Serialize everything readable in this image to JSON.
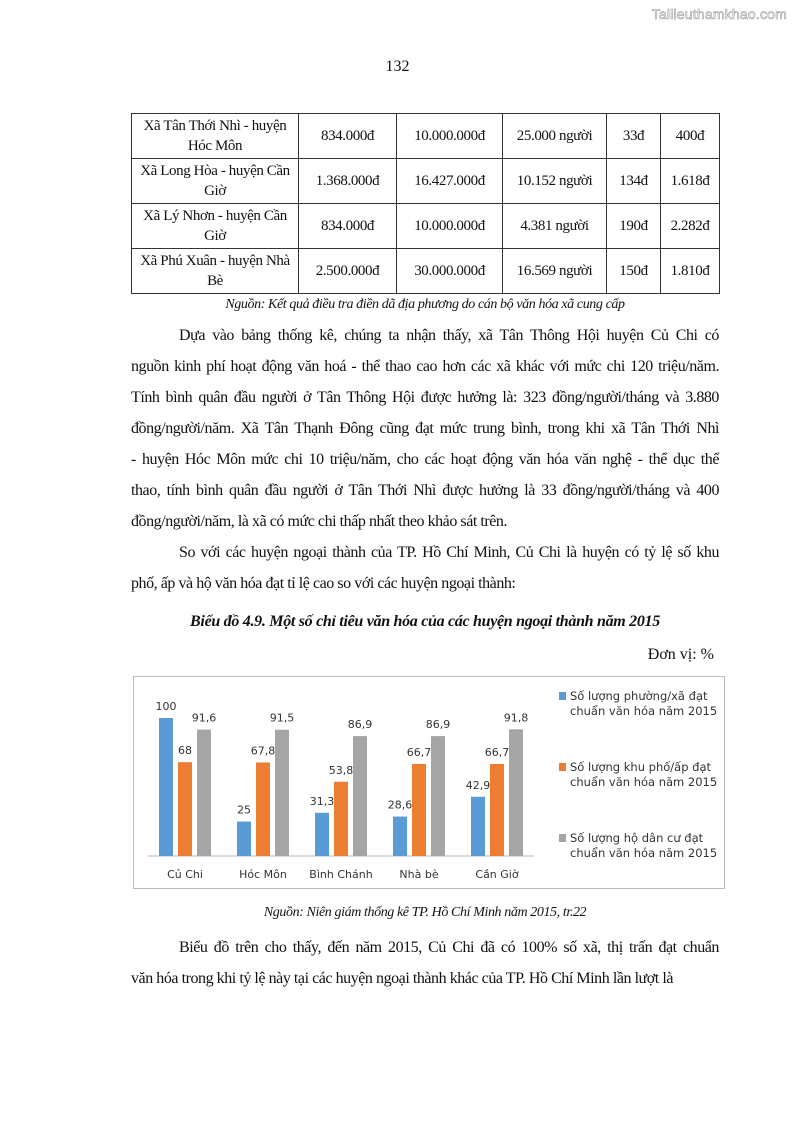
{
  "watermark": "Tailieuthamkhao.com",
  "page_number": "132",
  "table": {
    "rows": [
      [
        "Xã Tân Thới Nhì - huyện Hóc Môn",
        "834.000đ",
        "10.000.000đ",
        "25.000 người",
        "33đ",
        "400đ"
      ],
      [
        "Xã Long Hòa - huyện Cần Giờ",
        "1.368.000đ",
        "16.427.000đ",
        "10.152 người",
        "134đ",
        "1.618đ"
      ],
      [
        "Xã Lý Nhơn - huyện Cần Giờ",
        "834.000đ",
        "10.000.000đ",
        "4.381 người",
        "190đ",
        "2.282đ"
      ],
      [
        "Xã Phú Xuân - huyện Nhà Bè",
        "2.500.000đ",
        "30.000.000đ",
        "16.569 người",
        "150đ",
        "1.810đ"
      ]
    ],
    "source": "Nguồn: Kết quả điều tra điền dã địa phương do cán bộ văn hóa xã cung cấp"
  },
  "paragraphs": [
    {
      "lines": [
        "Dựa vào bảng thống kê, chúng ta nhận thấy, xã Tân Thông Hội huyện Củ Chi có",
        "nguồn kinh phí hoạt động văn hoá - thể thao cao hơn các xã khác với mức chi 120 triệu/năm.",
        "Tính bình quân đầu người ở Tân Thông Hội được hưởng là: 323 đồng/người/tháng và 3.880",
        "đồng/người/năm. Xã Tân Thạnh Đông cũng đạt mức trung bình, trong khi xã Tân Thới Nhì",
        "- huyện Hóc Môn mức chi 10 triệu/năm, cho các hoạt động văn hóa văn nghệ - thể dục thể",
        "thao, tính bình quân đầu người ở Tân Thới Nhì được hưởng là 33 đồng/người/tháng và 400",
        "đồng/người/năm, là xã có mức chi thấp nhất theo khảo sát trên."
      ]
    },
    {
      "lines": [
        "So với các huyện ngoại thành của TP. Hồ Chí Minh, Củ Chi là huyện có tỷ lệ số khu",
        "phố, ấp và hộ văn hóa đạt tỉ lệ cao so với các huyện ngoại thành:"
      ]
    },
    {
      "lines": [
        "Biểu đồ trên cho thấy, đến năm 2015, Củ Chi đã có 100% số xã, thị trấn đạt chuẩn",
        "văn hóa trong khi tỷ lệ này tại các huyện ngoại thành khác của TP. Hồ Chí Minh lần lượt là"
      ]
    }
  ],
  "chart_title": "Biểu đồ 4.9. Một số chỉ tiêu văn hóa của các huyện ngoại thành năm 2015",
  "unit": "Đơn vị: %",
  "chart_source": "Nguồn: Niên giám thống kê  TP. Hồ Chí Minh năm 2015, tr.22",
  "chart_data": {
    "type": "bar",
    "categories": [
      "Củ Chi",
      "Hóc Môn",
      "Bình Chánh",
      "Nhà bè",
      "Cần Giờ"
    ],
    "series": [
      {
        "name": "Số lượng phường/xã đạt chuẩn văn hóa năm 2015",
        "name_lines": [
          "Số lượng phường/xã đạt",
          "chuẩn văn hóa năm 2015"
        ],
        "color": "#5b9bd5",
        "values": [
          100,
          25,
          31.3,
          28.6,
          42.9
        ],
        "labels": [
          "100",
          "25",
          "31,3",
          "28,6",
          "42,9"
        ]
      },
      {
        "name": "Số lượng khu phố/ấp đạt chuẩn văn hóa năm 2015",
        "name_lines": [
          "Số lượng khu phố/ấp đạt",
          "chuẩn văn hóa năm 2015"
        ],
        "color": "#ed7d31",
        "values": [
          68,
          67.8,
          53.8,
          66.7,
          66.7
        ],
        "labels": [
          "68",
          "67,8",
          "53,8",
          "66,7",
          "66,7"
        ]
      },
      {
        "name": "Số lượng hộ dân cư đạt chuẩn văn hóa năm 2015",
        "name_lines": [
          "Số lượng hộ dân cư đạt",
          "chuẩn văn hóa năm 2015"
        ],
        "color": "#a5a5a5",
        "values": [
          91.6,
          91.5,
          86.9,
          86.9,
          91.8
        ],
        "labels": [
          "91,6",
          "91,5",
          "86,9",
          "86,9",
          "91,8"
        ]
      }
    ],
    "ylim": [
      0,
      100
    ],
    "grid": false,
    "legend": "right",
    "data_labels": true
  }
}
